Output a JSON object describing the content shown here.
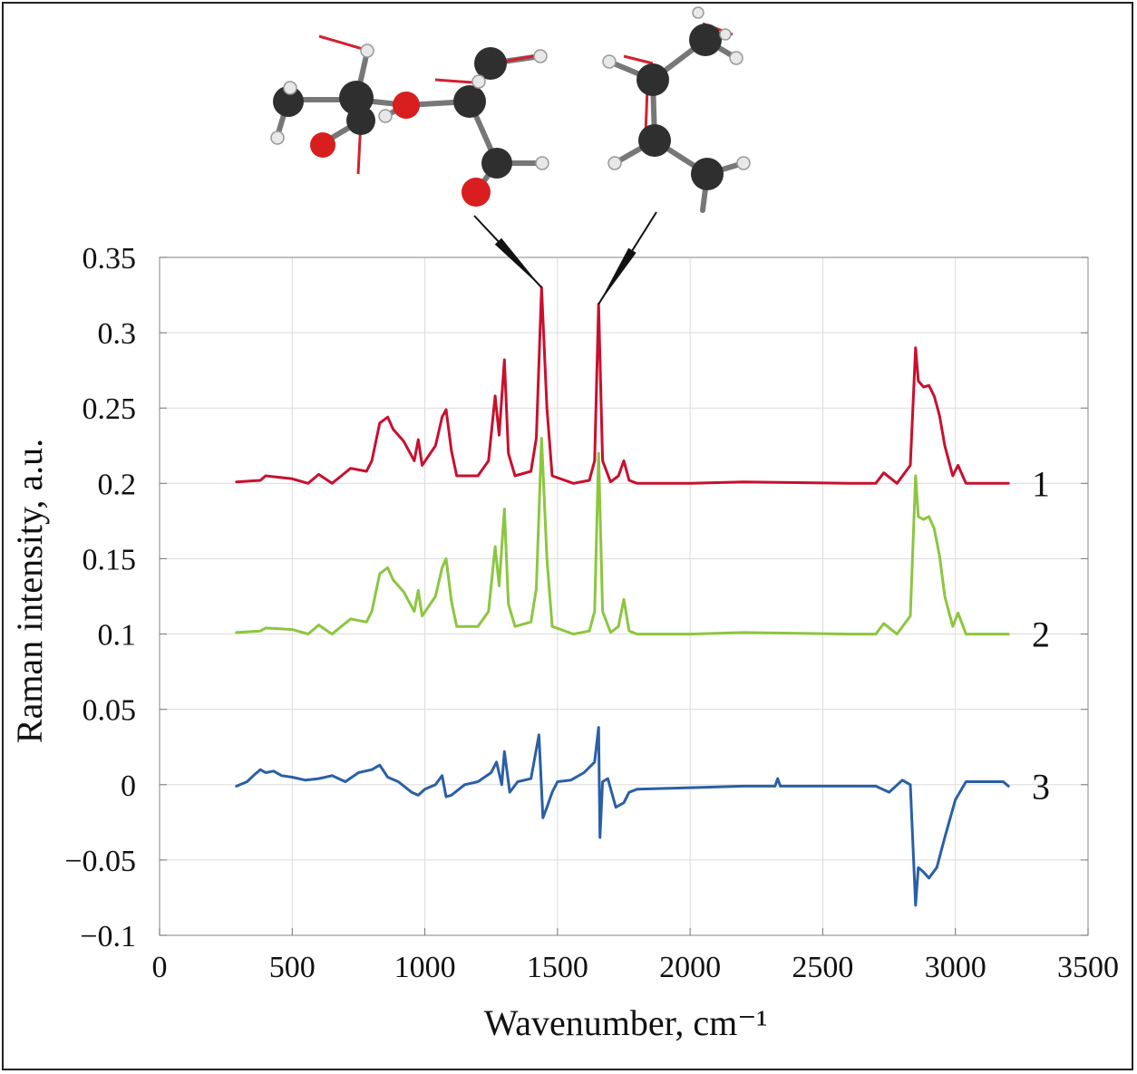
{
  "chart_data": {
    "type": "line",
    "title": "",
    "xlabel": "Wavenumber, cm⁻¹",
    "ylabel": "Raman intensity, a.u.",
    "xlim": [
      0,
      3500
    ],
    "ylim": [
      -0.1,
      0.35
    ],
    "grid": true,
    "xticks": [
      0,
      500,
      1000,
      1500,
      2000,
      2500,
      3000,
      3500
    ],
    "xtick_labels": [
      "0",
      "500",
      "1000",
      "1500",
      "2000",
      "2500",
      "3000",
      "3500"
    ],
    "yticks": [
      -0.1,
      -0.05,
      0,
      0.05,
      0.1,
      0.15,
      0.2,
      0.25,
      0.3,
      0.35
    ],
    "ytick_labels": [
      "−0.1",
      "−0.05",
      "0",
      "0.05",
      "0.1",
      "0.15",
      "0.2",
      "0.25",
      "0.3",
      "0.35"
    ],
    "series": [
      {
        "label": "1",
        "color": "#c8102e",
        "x": [
          290,
          380,
          400,
          500,
          560,
          600,
          650,
          720,
          780,
          800,
          830,
          860,
          880,
          920,
          960,
          975,
          990,
          1040,
          1065,
          1080,
          1100,
          1120,
          1200,
          1240,
          1265,
          1280,
          1300,
          1315,
          1340,
          1400,
          1420,
          1440,
          1460,
          1480,
          1560,
          1620,
          1640,
          1655,
          1670,
          1700,
          1730,
          1750,
          1770,
          1800,
          2000,
          2200,
          2600,
          2700,
          2730,
          2780,
          2830,
          2850,
          2860,
          2880,
          2900,
          2920,
          2940,
          2960,
          2990,
          3010,
          3040,
          3200
        ],
        "y": [
          0.201,
          0.202,
          0.205,
          0.203,
          0.2,
          0.206,
          0.2,
          0.21,
          0.208,
          0.215,
          0.24,
          0.244,
          0.236,
          0.228,
          0.215,
          0.229,
          0.212,
          0.225,
          0.244,
          0.249,
          0.222,
          0.205,
          0.205,
          0.215,
          0.258,
          0.232,
          0.282,
          0.22,
          0.205,
          0.208,
          0.23,
          0.33,
          0.25,
          0.205,
          0.2,
          0.202,
          0.215,
          0.319,
          0.215,
          0.201,
          0.205,
          0.215,
          0.202,
          0.2,
          0.2,
          0.201,
          0.2,
          0.2,
          0.207,
          0.2,
          0.212,
          0.29,
          0.268,
          0.264,
          0.265,
          0.258,
          0.245,
          0.225,
          0.205,
          0.212,
          0.2,
          0.2
        ]
      },
      {
        "label": "2",
        "color": "#8cc63f",
        "x": [
          290,
          380,
          400,
          500,
          560,
          600,
          650,
          720,
          780,
          800,
          830,
          860,
          880,
          920,
          960,
          975,
          990,
          1040,
          1065,
          1080,
          1100,
          1120,
          1200,
          1240,
          1265,
          1280,
          1300,
          1315,
          1340,
          1400,
          1420,
          1440,
          1460,
          1480,
          1560,
          1620,
          1640,
          1655,
          1670,
          1700,
          1730,
          1750,
          1770,
          1800,
          2000,
          2200,
          2600,
          2700,
          2730,
          2780,
          2830,
          2850,
          2860,
          2880,
          2900,
          2920,
          2940,
          2960,
          2990,
          3010,
          3040,
          3200
        ],
        "y": [
          0.101,
          0.102,
          0.104,
          0.103,
          0.1,
          0.106,
          0.1,
          0.11,
          0.108,
          0.115,
          0.14,
          0.144,
          0.136,
          0.128,
          0.115,
          0.129,
          0.112,
          0.125,
          0.144,
          0.15,
          0.122,
          0.105,
          0.105,
          0.115,
          0.158,
          0.132,
          0.183,
          0.12,
          0.105,
          0.108,
          0.13,
          0.23,
          0.15,
          0.105,
          0.1,
          0.102,
          0.115,
          0.22,
          0.115,
          0.101,
          0.105,
          0.123,
          0.102,
          0.1,
          0.1,
          0.101,
          0.1,
          0.1,
          0.107,
          0.1,
          0.112,
          0.205,
          0.178,
          0.176,
          0.178,
          0.17,
          0.152,
          0.125,
          0.105,
          0.114,
          0.1,
          0.1
        ]
      },
      {
        "label": "3",
        "color": "#2a5fa6",
        "x": [
          290,
          330,
          360,
          380,
          400,
          430,
          460,
          500,
          550,
          600,
          650,
          700,
          750,
          800,
          830,
          860,
          900,
          950,
          975,
          1000,
          1040,
          1065,
          1080,
          1100,
          1150,
          1200,
          1250,
          1270,
          1290,
          1300,
          1320,
          1350,
          1400,
          1430,
          1445,
          1460,
          1480,
          1500,
          1550,
          1600,
          1640,
          1655,
          1660,
          1670,
          1690,
          1720,
          1750,
          1770,
          1800,
          2000,
          2200,
          2320,
          2330,
          2340,
          2600,
          2700,
          2750,
          2800,
          2830,
          2850,
          2860,
          2880,
          2900,
          2930,
          2960,
          3000,
          3040,
          3100,
          3180,
          3200
        ],
        "y": [
          -0.001,
          0.002,
          0.007,
          0.01,
          0.008,
          0.009,
          0.006,
          0.005,
          0.003,
          0.004,
          0.006,
          0.002,
          0.008,
          0.01,
          0.013,
          0.005,
          0.002,
          -0.005,
          -0.007,
          -0.003,
          0.0,
          0.006,
          -0.008,
          -0.007,
          0.0,
          0.002,
          0.008,
          0.015,
          0.0,
          0.022,
          -0.005,
          0.002,
          0.004,
          0.033,
          -0.022,
          -0.015,
          -0.005,
          0.002,
          0.003,
          0.008,
          0.015,
          0.038,
          -0.035,
          0.002,
          0.004,
          -0.015,
          -0.012,
          -0.005,
          -0.003,
          -0.002,
          -0.001,
          -0.001,
          0.004,
          -0.001,
          -0.001,
          -0.001,
          -0.005,
          0.003,
          0.0,
          -0.08,
          -0.055,
          -0.058,
          -0.062,
          -0.055,
          -0.035,
          -0.01,
          0.002,
          0.002,
          0.002,
          -0.001
        ]
      }
    ],
    "annotations": [
      {
        "type": "pointer",
        "target_x": 1440,
        "target_y": 0.33,
        "molecule": "methyl ester molecule"
      },
      {
        "type": "pointer",
        "target_x": 1655,
        "target_y": 0.319,
        "molecule": "butene molecule"
      }
    ]
  }
}
